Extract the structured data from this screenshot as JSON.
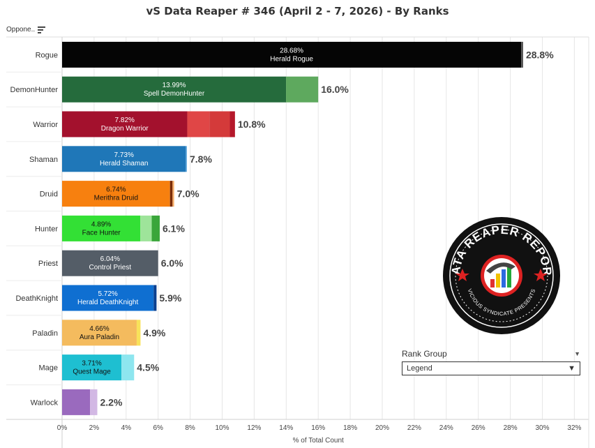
{
  "title": "vS Data Reaper # 346 (April 2 - 7, 2026) - By Ranks",
  "opponent_header": "Oppone..",
  "rank_group": {
    "title": "Rank Group",
    "selected": "Legend"
  },
  "logo": {
    "text_top": "DATA REAPER REPORT",
    "text_bottom": "VICIOUS SYNDICATE PRESENTS"
  },
  "colors": {
    "background": "#ffffff",
    "grid": "#e6e6e6",
    "text": "#333333"
  },
  "chart_data": {
    "type": "bar",
    "orientation": "horizontal",
    "stacked": true,
    "xlabel": "% of Total Count",
    "xlim": [
      0,
      32
    ],
    "xticks": [
      "0%",
      "2%",
      "4%",
      "6%",
      "8%",
      "10%",
      "12%",
      "14%",
      "16%",
      "18%",
      "20%",
      "22%",
      "24%",
      "26%",
      "28%",
      "30%",
      "32%"
    ],
    "grid": "vertical",
    "categories": [
      "Rogue",
      "DemonHunter",
      "Warrior",
      "Shaman",
      "Druid",
      "Hunter",
      "Priest",
      "DeathKnight",
      "Paladin",
      "Mage",
      "Warlock"
    ],
    "totals": [
      "28.8%",
      "16.0%",
      "10.8%",
      "7.8%",
      "7.0%",
      "6.1%",
      "6.0%",
      "5.9%",
      "4.9%",
      "4.5%",
      "2.2%"
    ],
    "total_values": [
      28.8,
      16.0,
      10.8,
      7.8,
      7.0,
      6.1,
      6.0,
      5.9,
      4.9,
      4.5,
      2.2
    ],
    "rows": [
      {
        "class": "Rogue",
        "segments": [
          {
            "value": 28.68,
            "color": "#050505",
            "pct": "28.68%",
            "archetype": "Herald Rogue",
            "label_color": "#ffffff"
          },
          {
            "value": 0.12,
            "color": "#555555"
          }
        ]
      },
      {
        "class": "DemonHunter",
        "segments": [
          {
            "value": 13.99,
            "color": "#256b3c",
            "pct": "13.99%",
            "archetype": "Spell DemonHunter",
            "label_color": "#ffffff"
          },
          {
            "value": 2.01,
            "color": "#5ea95e"
          }
        ]
      },
      {
        "class": "Warrior",
        "segments": [
          {
            "value": 7.82,
            "color": "#a3112d",
            "pct": "7.82%",
            "archetype": "Dragon Warrior",
            "label_color": "#ffffff"
          },
          {
            "value": 1.38,
            "color": "#e04646"
          },
          {
            "value": 1.28,
            "color": "#d43a3a"
          },
          {
            "value": 0.32,
            "color": "#b5182b"
          }
        ]
      },
      {
        "class": "Shaman",
        "segments": [
          {
            "value": 7.73,
            "color": "#1f77b8",
            "pct": "7.73%",
            "archetype": "Herald Shaman",
            "label_color": "#ffffff"
          },
          {
            "value": 0.07,
            "color": "#6aaee0"
          }
        ]
      },
      {
        "class": "Druid",
        "segments": [
          {
            "value": 6.74,
            "color": "#f7800f",
            "pct": "6.74%",
            "archetype": "Merithra Druid",
            "label_color": "#111111"
          },
          {
            "value": 0.16,
            "color": "#7a2c08"
          },
          {
            "value": 0.1,
            "color": "#f9b06a"
          }
        ]
      },
      {
        "class": "Hunter",
        "segments": [
          {
            "value": 4.89,
            "color": "#33e035",
            "pct": "4.89%",
            "archetype": "Face Hunter",
            "label_color": "#111111"
          },
          {
            "value": 0.71,
            "color": "#9ee49a"
          },
          {
            "value": 0.5,
            "color": "#3aa63a"
          }
        ]
      },
      {
        "class": "Priest",
        "segments": [
          {
            "value": 6.0,
            "color": "#545d67",
            "pct": "6.04%",
            "archetype": "Control Priest",
            "label_color": "#ffffff"
          }
        ]
      },
      {
        "class": "DeathKnight",
        "segments": [
          {
            "value": 5.72,
            "color": "#0f6fd1",
            "pct": "5.72%",
            "archetype": "Herald DeathKnight",
            "label_color": "#ffffff"
          },
          {
            "value": 0.18,
            "color": "#0a3f8f"
          }
        ]
      },
      {
        "class": "Paladin",
        "segments": [
          {
            "value": 4.66,
            "color": "#f4bb5e",
            "pct": "4.66%",
            "archetype": "Aura Paladin",
            "label_color": "#111111"
          },
          {
            "value": 0.24,
            "color": "#f8e25a"
          }
        ]
      },
      {
        "class": "Mage",
        "segments": [
          {
            "value": 3.71,
            "color": "#1ebfd1",
            "pct": "3.71%",
            "archetype": "Quest Mage",
            "label_color": "#111111"
          },
          {
            "value": 0.79,
            "color": "#8ee6ef"
          }
        ]
      },
      {
        "class": "Warlock",
        "segments": [
          {
            "value": 1.75,
            "color": "#9a6abe",
            "label_color": "#ffffff"
          },
          {
            "value": 0.45,
            "color": "#d2b8e4"
          }
        ]
      }
    ]
  }
}
